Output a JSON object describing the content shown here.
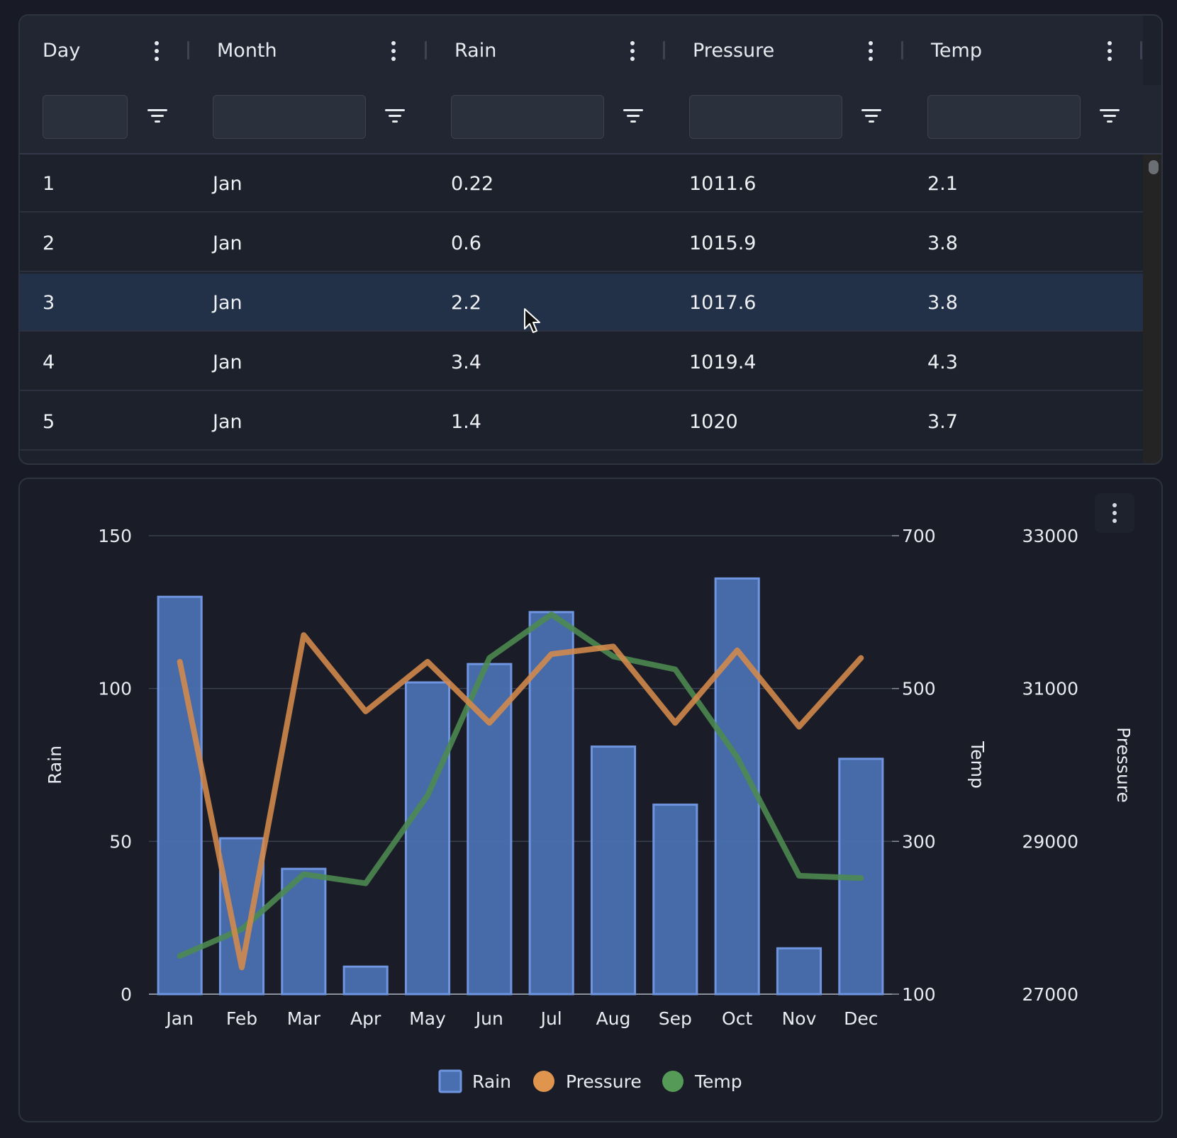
{
  "grid": {
    "columns": [
      {
        "label": "Day"
      },
      {
        "label": "Month"
      },
      {
        "label": "Rain"
      },
      {
        "label": "Pressure"
      },
      {
        "label": "Temp"
      }
    ],
    "rows": [
      {
        "day": "1",
        "month": "Jan",
        "rain": "0.22",
        "pressure": "1011.6",
        "temp": "2.1"
      },
      {
        "day": "2",
        "month": "Jan",
        "rain": "0.6",
        "pressure": "1015.9",
        "temp": "3.8"
      },
      {
        "day": "3",
        "month": "Jan",
        "rain": "2.2",
        "pressure": "1017.6",
        "temp": "3.8"
      },
      {
        "day": "4",
        "month": "Jan",
        "rain": "3.4",
        "pressure": "1019.4",
        "temp": "4.3"
      },
      {
        "day": "5",
        "month": "Jan",
        "rain": "1.4",
        "pressure": "1020",
        "temp": "3.7"
      }
    ],
    "selected_row": 3,
    "colors": {
      "selected_row": "#223148",
      "panel": "#1d212c",
      "header": "#212632"
    }
  },
  "chart_data": {
    "type": "bar",
    "categories": [
      "Jan",
      "Feb",
      "Mar",
      "Apr",
      "May",
      "Jun",
      "Jul",
      "Aug",
      "Sep",
      "Oct",
      "Nov",
      "Dec"
    ],
    "series": [
      {
        "name": "Rain",
        "type": "bar",
        "axis": "left",
        "values": [
          130,
          51,
          41,
          9,
          102,
          108,
          125,
          81,
          62,
          136,
          15,
          77
        ],
        "color": "#4a6fb0"
      },
      {
        "name": "Pressure",
        "type": "line",
        "axis": "right-outer",
        "values": [
          31350,
          27350,
          31700,
          30700,
          31350,
          30550,
          31450,
          31550,
          30550,
          31500,
          30500,
          31400
        ],
        "color": "#d58a4a"
      },
      {
        "name": "Temp",
        "type": "line",
        "axis": "right-inner",
        "values": [
          150,
          185,
          257,
          245,
          360,
          540,
          597,
          542,
          525,
          410,
          255,
          252
        ],
        "color": "#4d8a50"
      }
    ],
    "axes": {
      "left": {
        "label": "Rain",
        "range": [
          0,
          150
        ],
        "ticks": [
          "0",
          "50",
          "100",
          "150"
        ]
      },
      "right_inner": {
        "label": "Temp",
        "range": [
          100,
          700
        ],
        "ticks": [
          "100",
          "300",
          "500",
          "700"
        ]
      },
      "right_outer": {
        "label": "Pressure",
        "range": [
          27000,
          33000
        ],
        "ticks": [
          "27000",
          "29000",
          "31000",
          "33000"
        ]
      }
    },
    "grid": true,
    "legend": {
      "position": "bottom-center",
      "items": [
        "Rain",
        "Pressure",
        "Temp"
      ]
    }
  }
}
